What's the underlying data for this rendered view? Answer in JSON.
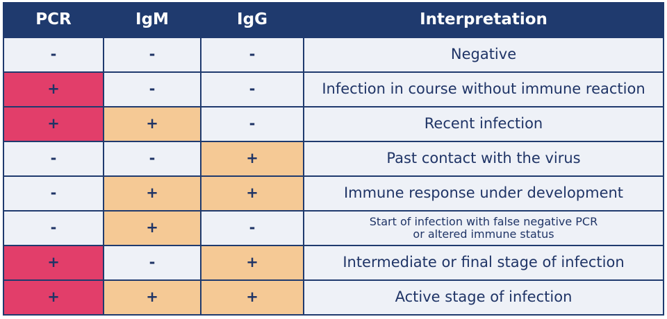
{
  "table": {
    "header": [
      "PCR",
      "IgM",
      "IgG",
      "Interpretation"
    ],
    "rows": [
      [
        "-",
        "-",
        "-",
        "Negative"
      ],
      [
        "+",
        "-",
        "-",
        "Infection in course without immune reaction"
      ],
      [
        "+",
        "+",
        "-",
        "Recent infection"
      ],
      [
        "-",
        "-",
        "+",
        "Past contact with the virus"
      ],
      [
        "-",
        "+",
        "+",
        "Immune response under development"
      ],
      [
        "-",
        "+",
        "-",
        "Start of infection with false negative PCR\nor altered immune status"
      ],
      [
        "+",
        "-",
        "+",
        "Intermediate or final stage of infection"
      ],
      [
        "+",
        "+",
        "+",
        "Active stage of infection"
      ]
    ],
    "colors": {
      "header": "#1f3a6e",
      "cell": "#eef1f7",
      "pcr_positive": "#e23e6a",
      "antibody_positive": "#f5c995",
      "text": "#1f3466"
    }
  }
}
